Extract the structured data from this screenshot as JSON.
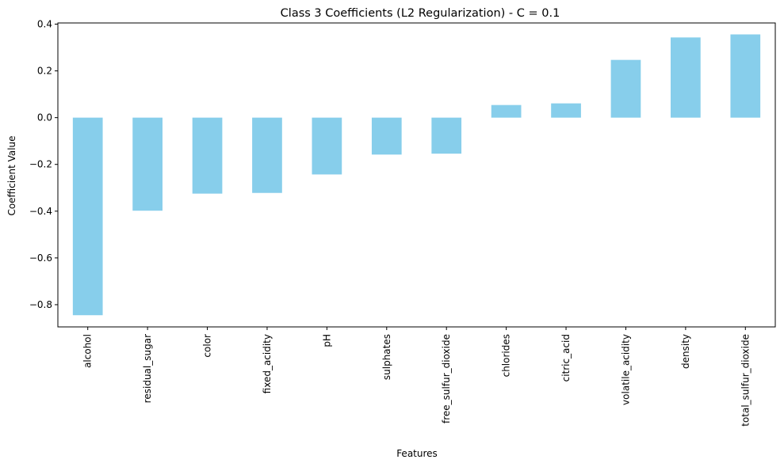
{
  "chart_data": {
    "type": "bar",
    "title": "Class 3 Coefficients (L2 Regularization) - C = 0.1",
    "xlabel": "Features",
    "ylabel": "Coefficient Value",
    "categories": [
      "alcohol",
      "residual_sugar",
      "color",
      "fixed_acidity",
      "pH",
      "sulphates",
      "free_sulfur_dioxide",
      "chlorides",
      "citric_acid",
      "volatile_acidity",
      "density",
      "total_sulfur_dioxide"
    ],
    "values": [
      -0.845,
      -0.398,
      -0.325,
      -0.322,
      -0.243,
      -0.158,
      -0.154,
      0.054,
      0.061,
      0.247,
      0.343,
      0.356
    ],
    "yticks": [
      -0.8,
      -0.6,
      -0.4,
      -0.2,
      0.0,
      0.2,
      0.4
    ],
    "ytick_labels": [
      "−0.8",
      "−0.6",
      "−0.4",
      "−0.2",
      "0.0",
      "0.2",
      "0.4"
    ],
    "ylim": [
      -0.895,
      0.405
    ],
    "grid": false,
    "bar_color": "#87CEEB"
  }
}
